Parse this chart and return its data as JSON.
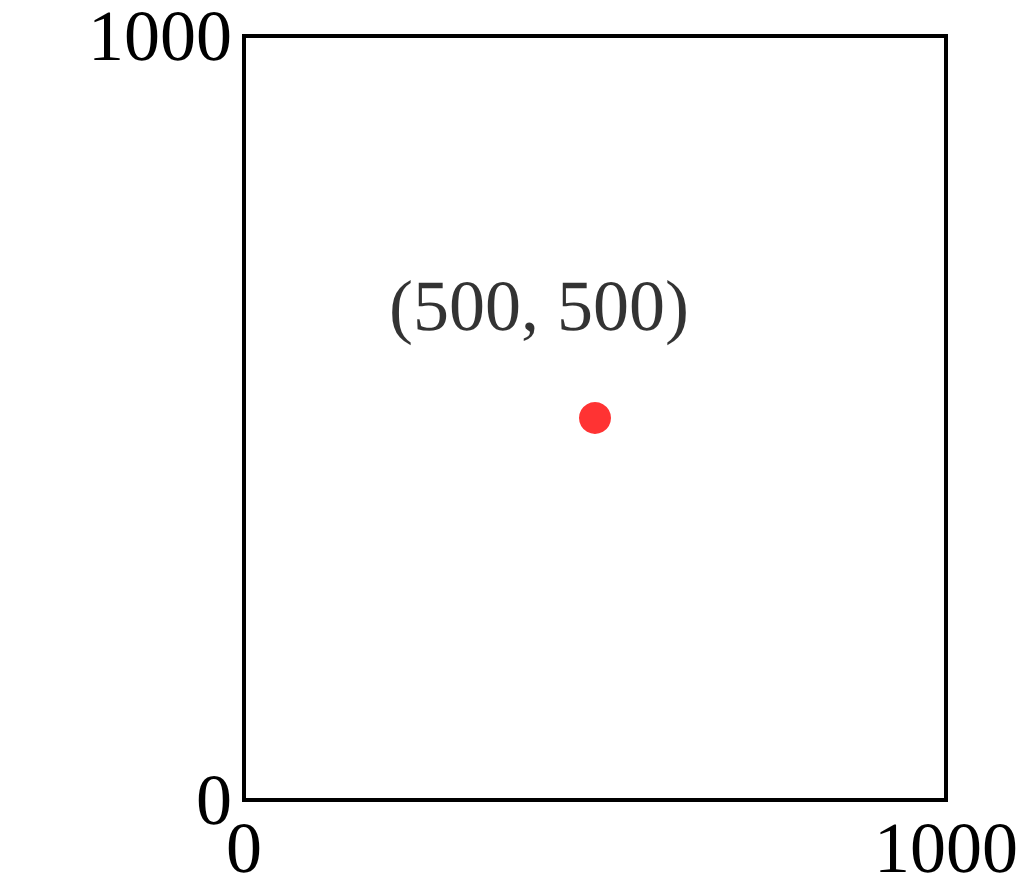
{
  "chart_data": {
    "type": "scatter",
    "x": [
      500
    ],
    "series": [
      {
        "color": "#ff0000",
        "values": [
          500
        ]
      }
    ],
    "xlim": [
      0,
      1000
    ],
    "ylim": [
      0,
      1000
    ],
    "xticks": [
      0,
      1000
    ],
    "yticks": [
      0,
      1000
    ],
    "grid": false,
    "marker": "circle",
    "annotations": [
      {
        "text": "(500, 500)",
        "x": 500,
        "y": 500
      }
    ]
  }
}
